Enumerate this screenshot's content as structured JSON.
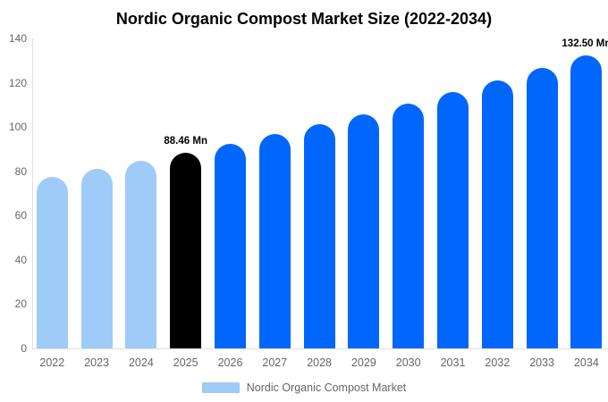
{
  "title": "Nordic Organic Compost Market Size (2022-2034)",
  "legend": {
    "label": "Nordic Organic Compost Market",
    "swatch_color": "#9ECBF7"
  },
  "colors": {
    "past_bar": "#9ECBF7",
    "highlight_bar": "#000000",
    "forecast_bar": "#0166FB",
    "axis_text": "#666666",
    "axis_line": "#E0E0E0",
    "annotation_text": "#000000",
    "background": "#FFFFFF"
  },
  "chart_data": {
    "type": "bar",
    "title": "Nordic Organic Compost Market Size (2022-2034)",
    "categories": [
      "2022",
      "2023",
      "2024",
      "2025",
      "2026",
      "2027",
      "2028",
      "2029",
      "2030",
      "2031",
      "2032",
      "2033",
      "2034"
    ],
    "values": [
      77.3,
      80.9,
      84.6,
      88.46,
      92.5,
      96.8,
      101.2,
      105.9,
      110.7,
      115.8,
      121.1,
      126.7,
      132.5
    ],
    "bar_colors": [
      "#9ECBF7",
      "#9ECBF7",
      "#9ECBF7",
      "#000000",
      "#0166FB",
      "#0166FB",
      "#0166FB",
      "#0166FB",
      "#0166FB",
      "#0166FB",
      "#0166FB",
      "#0166FB",
      "#0166FB"
    ],
    "annotations": [
      {
        "category": "2025",
        "text": "88.46 Mn"
      },
      {
        "category": "2034",
        "text": "132.50 Mn"
      }
    ],
    "xlabel": "",
    "ylabel": "",
    "ylim": [
      0,
      140
    ],
    "yticks": [
      0,
      20,
      40,
      60,
      80,
      100,
      120,
      140
    ],
    "grid": false,
    "legend_position": "bottom",
    "legend_entries": [
      "Nordic Organic Compost Market"
    ]
  }
}
